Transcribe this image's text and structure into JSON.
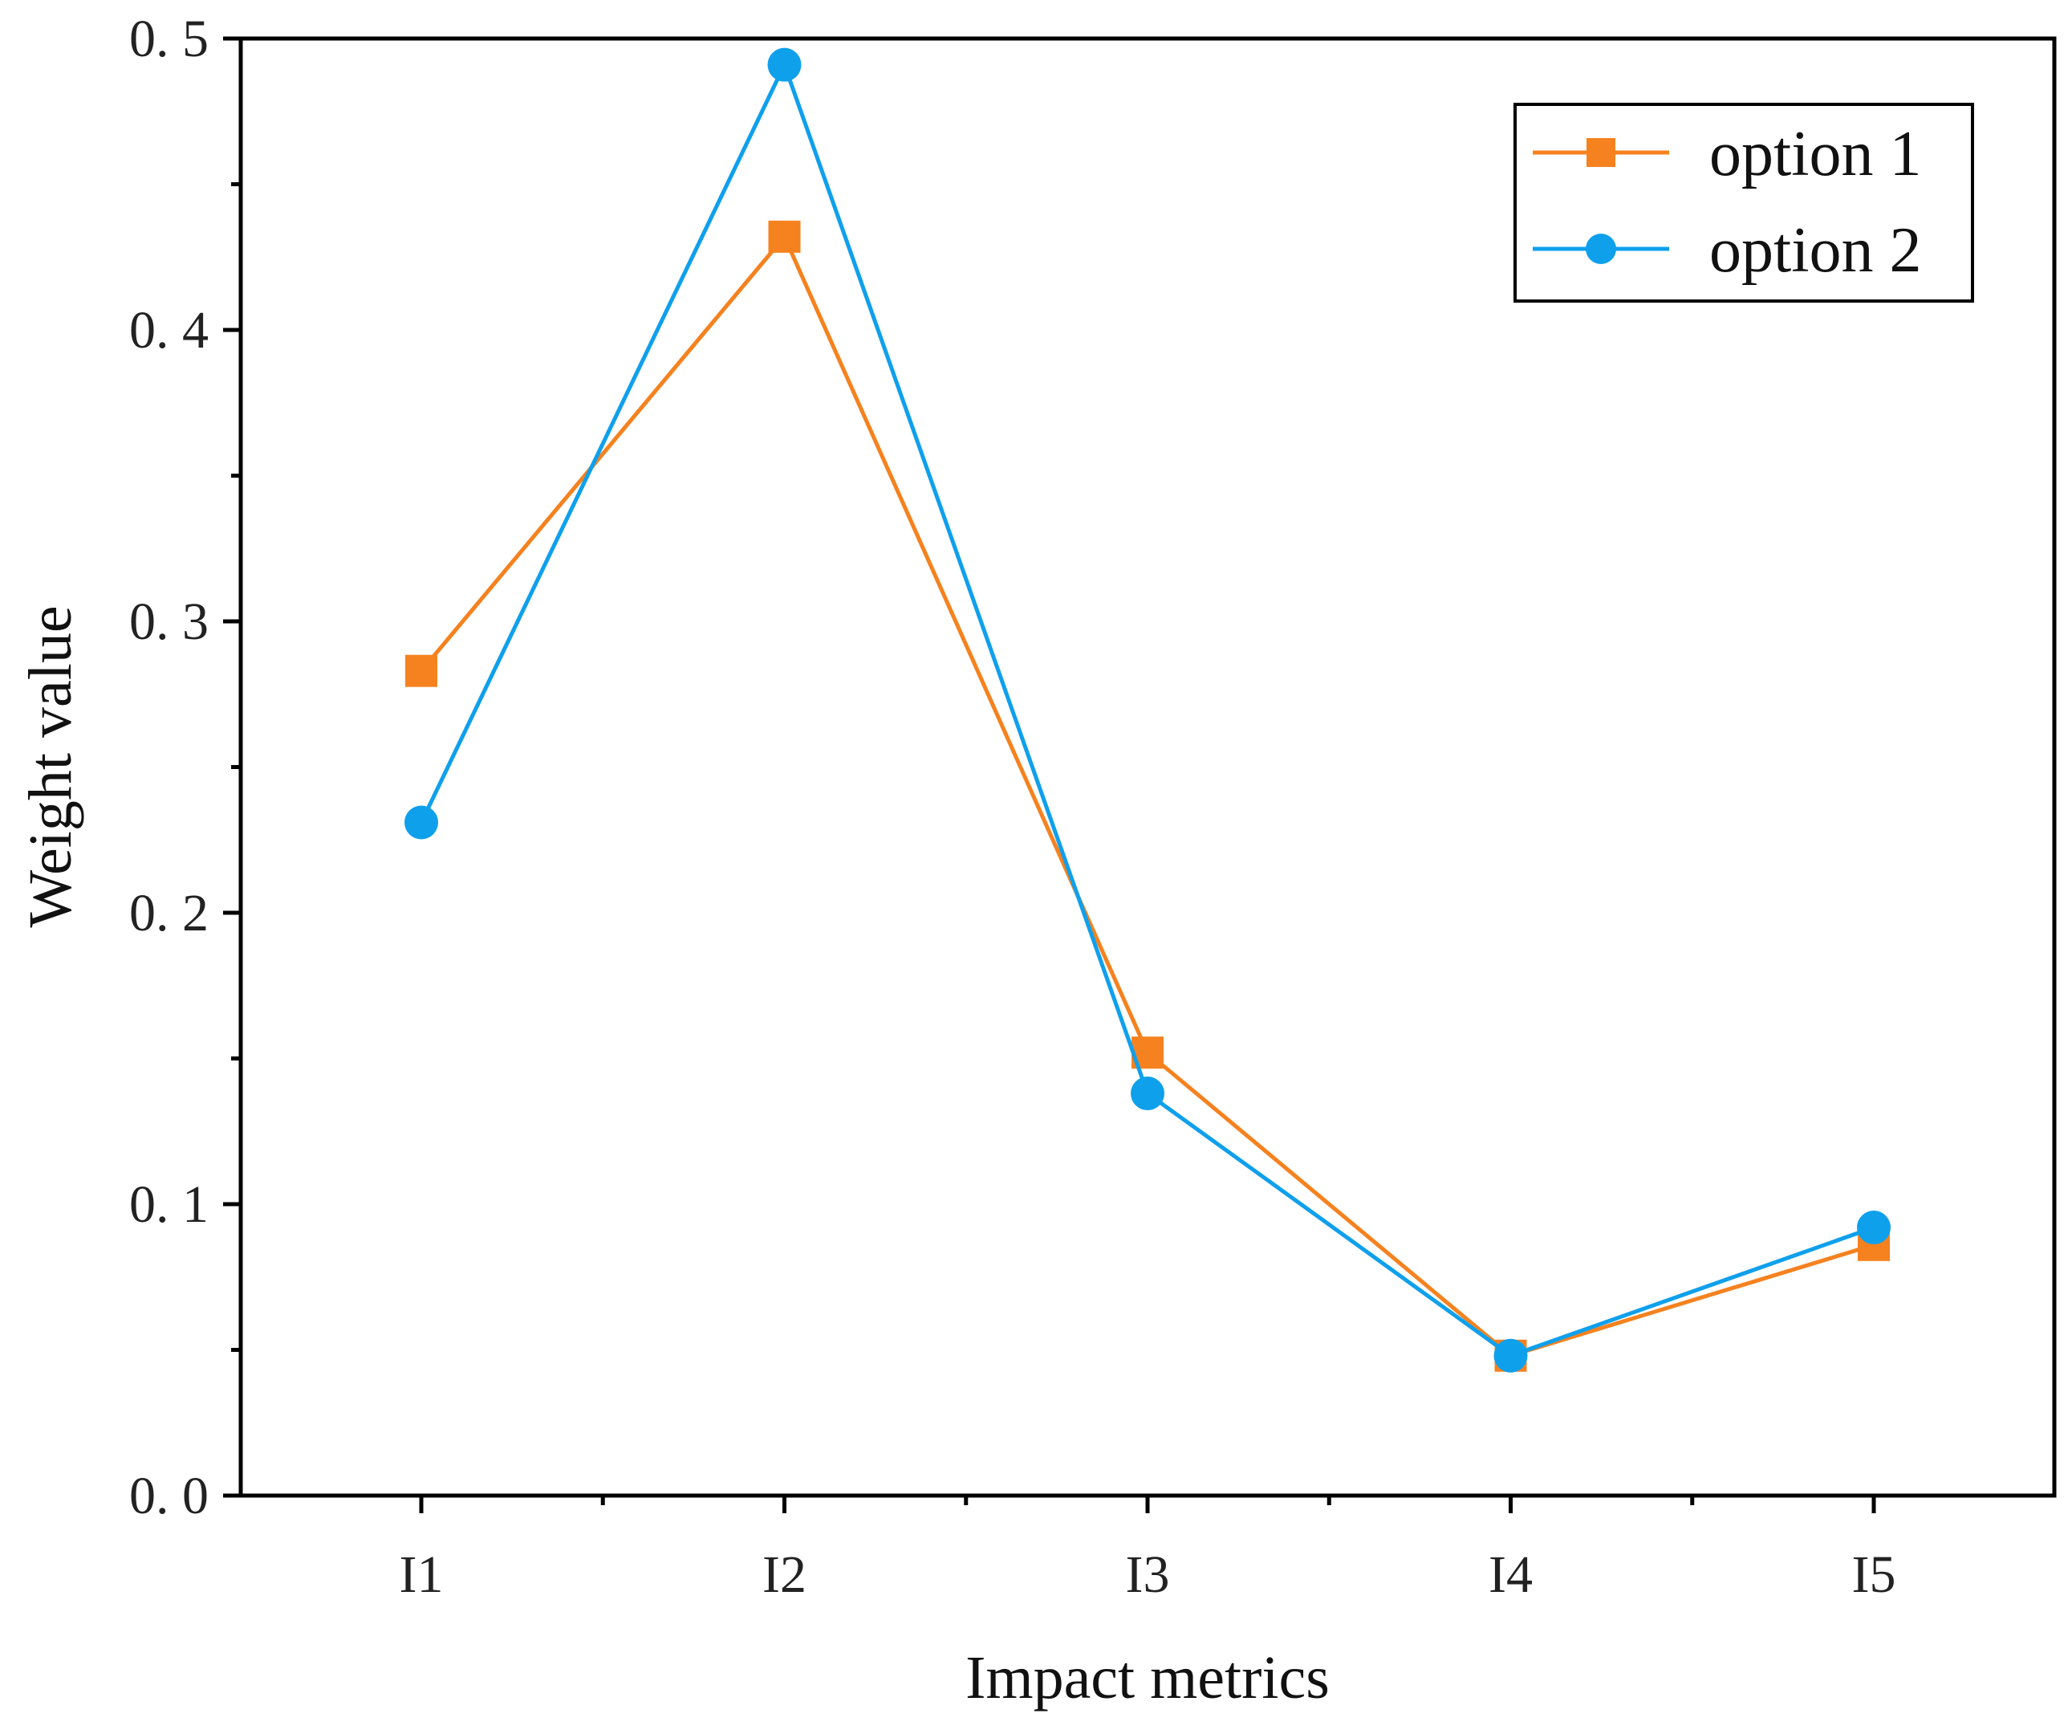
{
  "chart_data": {
    "type": "line",
    "categories": [
      "I1",
      "I2",
      "I3",
      "I4",
      "I5"
    ],
    "series": [
      {
        "name": "option 1",
        "values": [
          0.283,
          0.432,
          0.152,
          0.048,
          0.086
        ],
        "color": "#F5821F",
        "marker": "square"
      },
      {
        "name": "option 2",
        "values": [
          0.231,
          0.491,
          0.138,
          0.048,
          0.092
        ],
        "color": "#0FA0EC",
        "marker": "circle"
      }
    ],
    "xlabel": "Impact metrics",
    "ylabel": "Weight value",
    "ylim": [
      0,
      0.5
    ],
    "yticks": [
      "0. 0",
      "0. 1",
      "0. 2",
      "0. 3",
      "0. 4",
      "0. 5"
    ],
    "grid": false,
    "legend_position": "top-right"
  }
}
